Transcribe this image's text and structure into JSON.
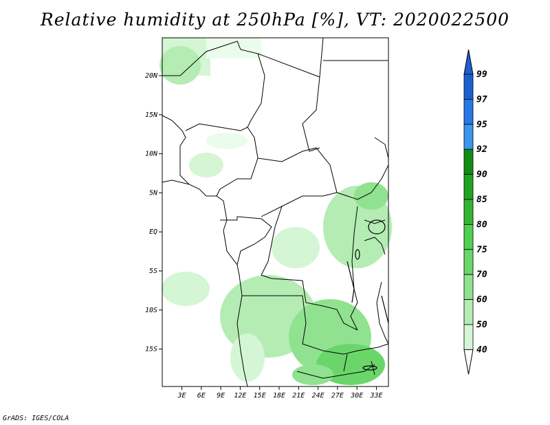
{
  "title": "Relative humidity at 250hPa [%], VT: 2020022500",
  "credit": "GrADS: IGES/COLA",
  "map": {
    "lat_labels": [
      "20N",
      "15N",
      "10N",
      "5N",
      "EQ",
      "5S",
      "10S",
      "15S"
    ],
    "lon_labels": [
      "3E",
      "6E",
      "9E",
      "12E",
      "15E",
      "18E",
      "21E",
      "24E",
      "27E",
      "30E",
      "33E"
    ]
  },
  "colorbar": {
    "labels": [
      "99",
      "97",
      "95",
      "92",
      "90",
      "85",
      "80",
      "75",
      "70",
      "60",
      "50",
      "40"
    ],
    "colors": [
      "#1e5fd0",
      "#2878e6",
      "#3c96f0",
      "#138c13",
      "#1fa41f",
      "#34b434",
      "#4fd04f",
      "#6ad66a",
      "#90e290",
      "#b4ecb4",
      "#d4f6d4",
      "#ecfcec"
    ]
  }
}
